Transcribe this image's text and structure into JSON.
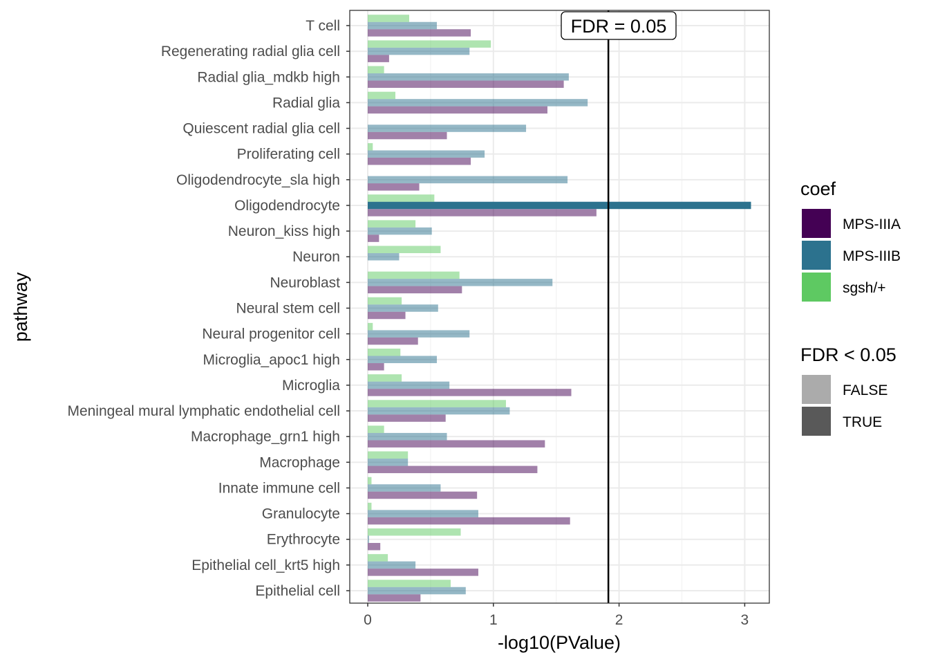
{
  "chart_data": {
    "type": "bar",
    "orientation": "horizontal",
    "xlabel": "-log10(PValue)",
    "ylabel": "pathway",
    "xlim": [
      -0.14,
      3.2
    ],
    "x_ticks": [
      0,
      1,
      2,
      3
    ],
    "categories": [
      "T cell",
      "Regenerating radial glia cell",
      "Radial glia_mdkb high",
      "Radial glia",
      "Quiescent radial glia cell",
      "Proliferating cell",
      "Oligodendrocyte_sla high",
      "Oligodendrocyte",
      "Neuron_kiss high",
      "Neuron",
      "Neuroblast",
      "Neural stem cell",
      "Neural progenitor cell",
      "Microglia_apoc1 high",
      "Microglia",
      "Meningeal mural lymphatic endothelial cell",
      "Macrophage_grn1 high",
      "Macrophage",
      "Innate immune cell",
      "Granulocyte",
      "Erythrocyte",
      "Epithelial cell_krt5 high",
      "Epithelial cell"
    ],
    "series": [
      {
        "name": "MPS-IIIA",
        "color": "#440154",
        "values": [
          0.82,
          0.17,
          1.56,
          1.43,
          0.63,
          0.82,
          0.41,
          1.82,
          0.09,
          0.0,
          0.75,
          0.3,
          0.4,
          0.13,
          1.62,
          0.62,
          1.41,
          1.35,
          0.87,
          1.61,
          0.1,
          0.88,
          0.42
        ],
        "fdr_significant": [
          false,
          false,
          false,
          false,
          false,
          false,
          false,
          false,
          false,
          false,
          false,
          false,
          false,
          false,
          false,
          false,
          false,
          false,
          false,
          false,
          false,
          false,
          false
        ]
      },
      {
        "name": "MPS-IIIB",
        "color": "#2c728e",
        "values": [
          0.55,
          0.81,
          1.6,
          1.75,
          1.26,
          0.93,
          1.59,
          3.05,
          0.51,
          0.25,
          1.47,
          0.56,
          0.81,
          0.55,
          0.65,
          1.13,
          0.63,
          0.32,
          0.58,
          0.88,
          0.01,
          0.38,
          0.78
        ],
        "fdr_significant": [
          false,
          false,
          false,
          false,
          false,
          false,
          false,
          true,
          false,
          false,
          false,
          false,
          false,
          false,
          false,
          false,
          false,
          false,
          false,
          false,
          false,
          false,
          false
        ]
      },
      {
        "name": "sgsh/+",
        "color": "#5ec962",
        "values": [
          0.33,
          0.98,
          0.13,
          0.22,
          0.0,
          0.04,
          0.0,
          0.53,
          0.38,
          0.58,
          0.73,
          0.27,
          0.04,
          0.26,
          0.27,
          1.1,
          0.13,
          0.32,
          0.03,
          0.03,
          0.74,
          0.16,
          0.66
        ],
        "fdr_significant": [
          false,
          false,
          false,
          false,
          false,
          false,
          false,
          false,
          false,
          false,
          false,
          false,
          false,
          false,
          false,
          false,
          false,
          false,
          false,
          false,
          false,
          false,
          false
        ]
      }
    ],
    "reference_line": {
      "x": 1.915,
      "label": "FDR = 0.05"
    },
    "legends": [
      {
        "title": "coef",
        "entries": [
          {
            "label": "MPS-IIIA",
            "color": "#440154"
          },
          {
            "label": "MPS-IIIB",
            "color": "#2c728e"
          },
          {
            "label": "sgsh/+",
            "color": "#5ec962"
          }
        ]
      },
      {
        "title": "FDR < 0.05",
        "entries": [
          {
            "label": "FALSE",
            "color": "#ababab"
          },
          {
            "label": "TRUE",
            "color": "#595959"
          }
        ]
      }
    ],
    "alpha": {
      "FALSE": 0.5,
      "TRUE": 1.0
    },
    "grid": true,
    "legend_position": "right"
  }
}
